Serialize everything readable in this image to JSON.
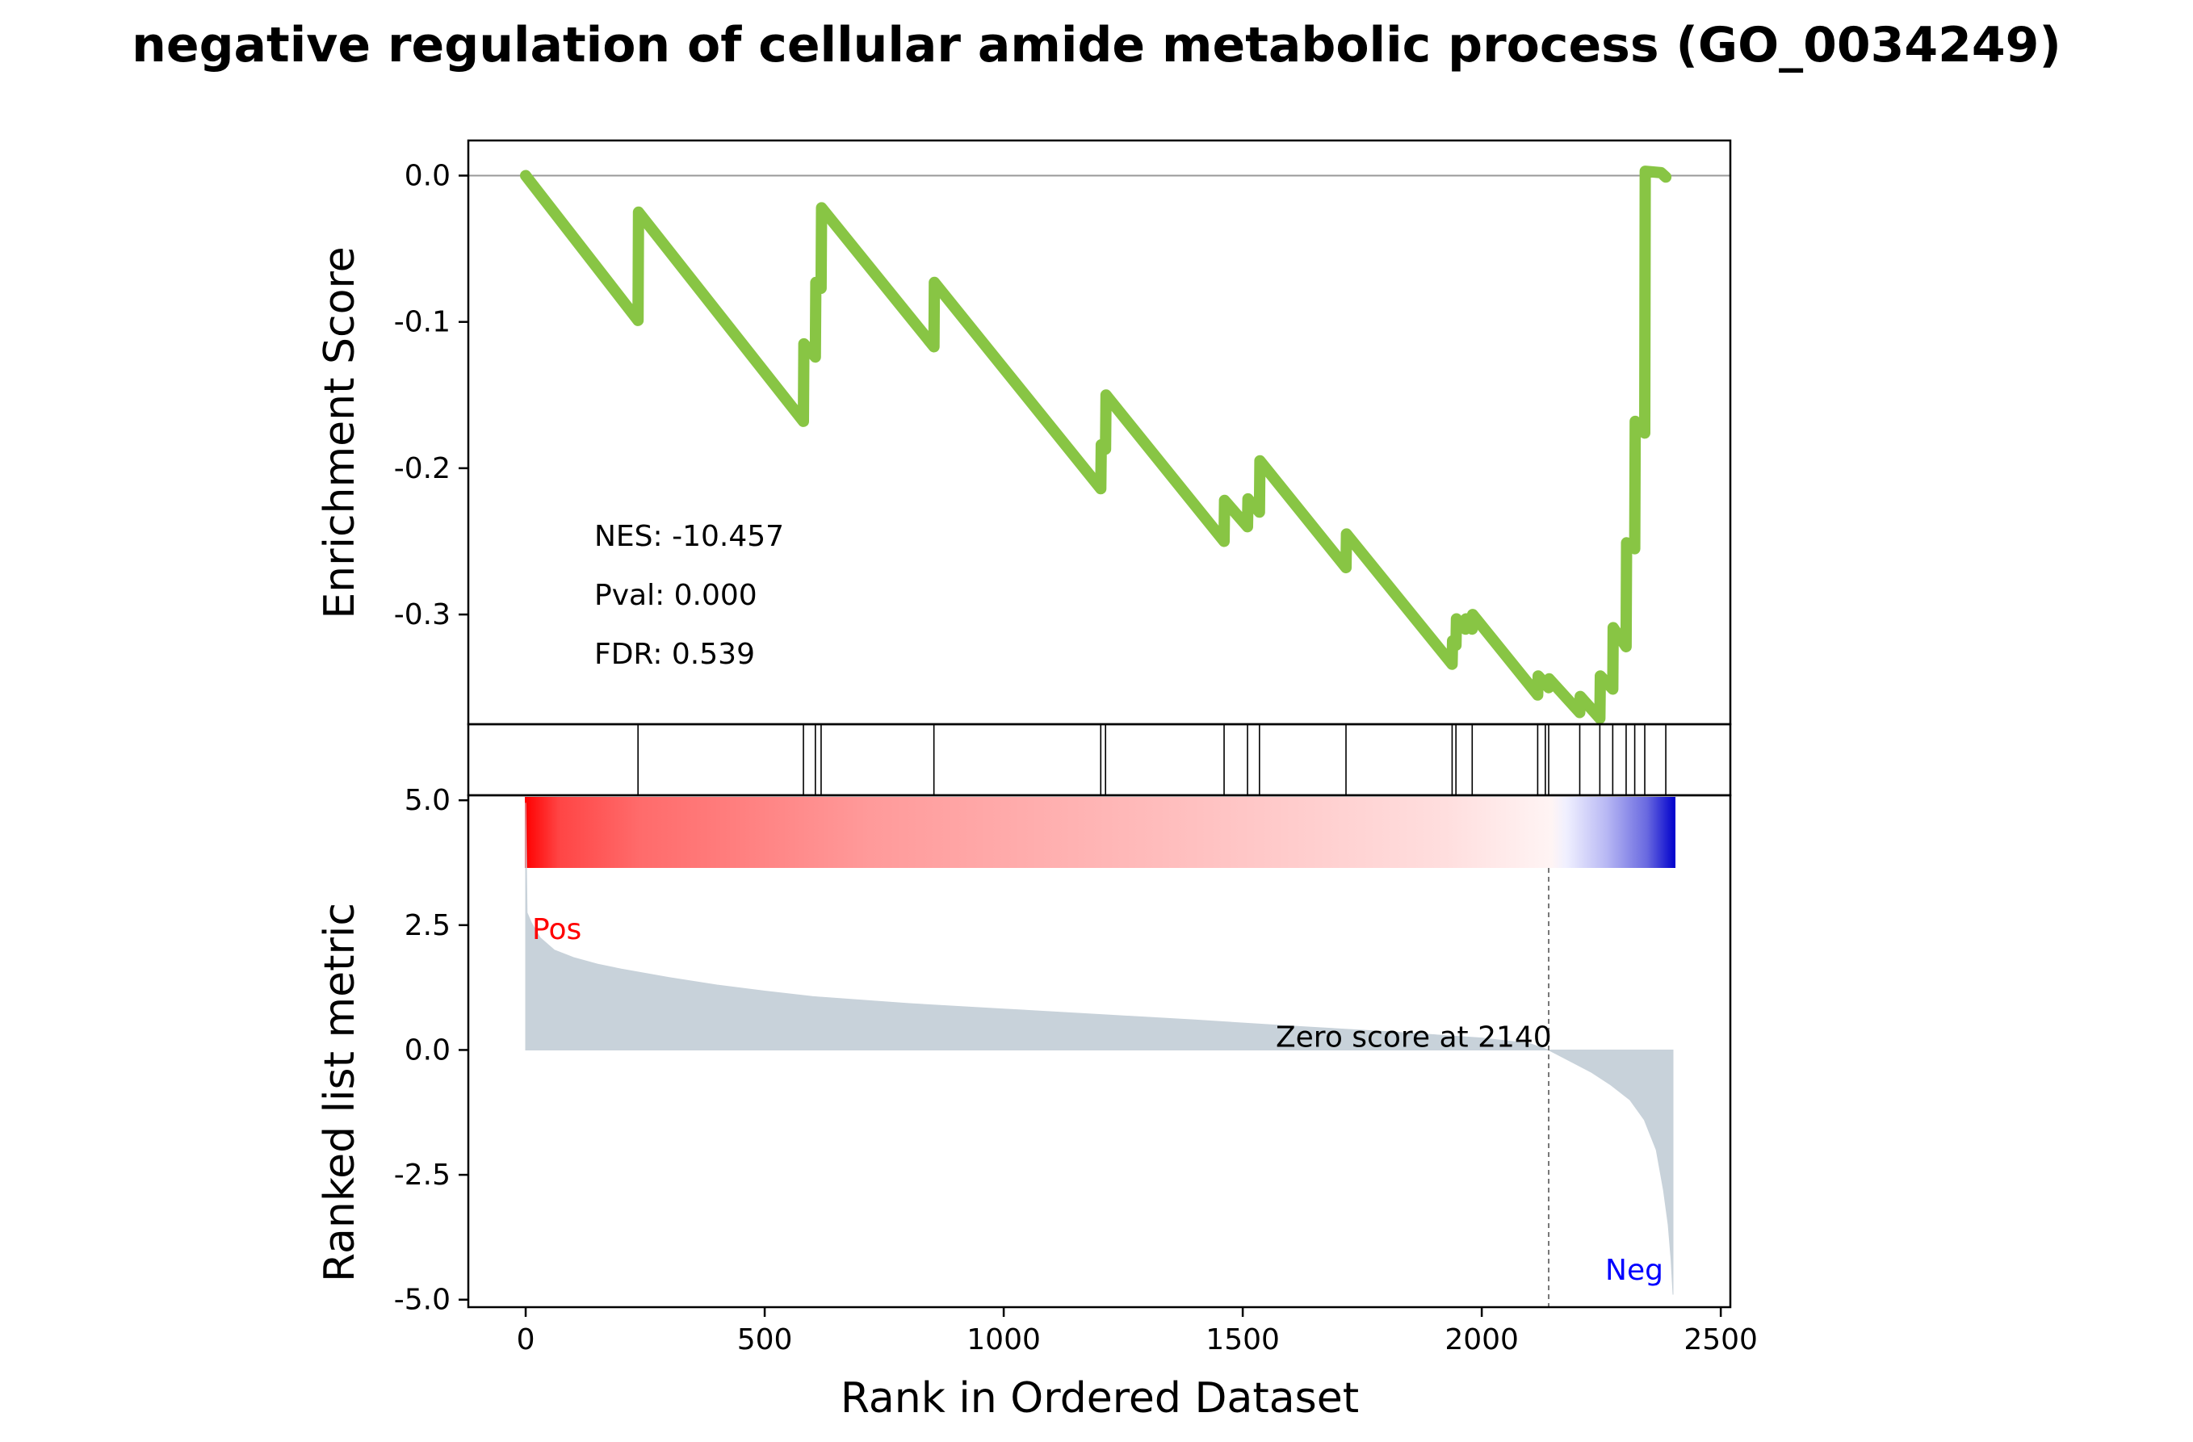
{
  "chart_data": {
    "type": "line",
    "title": "negative regulation of cellular amide metabolic process (GO_0034249)",
    "xlabel": "Rank in Ordered Dataset",
    "xlim": [
      -120,
      2520
    ],
    "xticks": [
      0,
      500,
      1000,
      1500,
      2000,
      2500
    ],
    "xtick_labels": [
      "0",
      "500",
      "1000",
      "1500",
      "2000",
      "2500"
    ],
    "n_genes": 2400,
    "enrichment": {
      "ylabel": "Enrichment Score",
      "ylim": [
        -0.375,
        0.024
      ],
      "yticks": [
        0.0,
        -0.1,
        -0.2,
        -0.3
      ],
      "ytick_labels": [
        "0.0",
        "-0.1",
        "-0.2",
        "-0.3"
      ],
      "color": "#88c544",
      "points": [
        [
          0,
          0.0
        ],
        [
          235,
          -0.099
        ],
        [
          236,
          -0.025
        ],
        [
          581,
          -0.168
        ],
        [
          582,
          -0.115
        ],
        [
          606,
          -0.124
        ],
        [
          607,
          -0.073
        ],
        [
          618,
          -0.077
        ],
        [
          619,
          -0.022
        ],
        [
          854,
          -0.117
        ],
        [
          855,
          -0.073
        ],
        [
          1203,
          -0.214
        ],
        [
          1204,
          -0.184
        ],
        [
          1213,
          -0.187
        ],
        [
          1214,
          -0.15
        ],
        [
          1461,
          -0.25
        ],
        [
          1462,
          -0.222
        ],
        [
          1510,
          -0.24
        ],
        [
          1511,
          -0.221
        ],
        [
          1535,
          -0.23
        ],
        [
          1536,
          -0.195
        ],
        [
          1716,
          -0.268
        ],
        [
          1717,
          -0.245
        ],
        [
          1938,
          -0.334
        ],
        [
          1939,
          -0.318
        ],
        [
          1946,
          -0.321
        ],
        [
          1947,
          -0.303
        ],
        [
          1966,
          -0.31
        ],
        [
          1967,
          -0.303
        ],
        [
          1980,
          -0.31
        ],
        [
          1981,
          -0.3
        ],
        [
          2117,
          -0.355
        ],
        [
          2118,
          -0.342
        ],
        [
          2140,
          -0.35
        ],
        [
          2141,
          -0.344
        ],
        [
          2205,
          -0.367
        ],
        [
          2206,
          -0.356
        ],
        [
          2247,
          -0.371
        ],
        [
          2248,
          -0.342
        ],
        [
          2274,
          -0.351
        ],
        [
          2275,
          -0.309
        ],
        [
          2302,
          -0.322
        ],
        [
          2303,
          -0.251
        ],
        [
          2320,
          -0.255
        ],
        [
          2321,
          -0.168
        ],
        [
          2341,
          -0.176
        ],
        [
          2342,
          0.003
        ],
        [
          2375,
          0.002
        ],
        [
          2385,
          -0.001
        ]
      ],
      "zero_line": 0.0
    },
    "hits": {
      "ranks": [
        235,
        581,
        606,
        618,
        854,
        1203,
        1213,
        1461,
        1510,
        1535,
        1716,
        1938,
        1946,
        1980,
        2117,
        2133,
        2140,
        2205,
        2247,
        2274,
        2302,
        2320,
        2341,
        2385
      ]
    },
    "heatmap": {
      "colors": [
        "#ff0000",
        "#ffffff",
        "#0000cc"
      ]
    },
    "ranked_metric": {
      "ylabel": "Ranked list metric",
      "ylim": [
        -5.15,
        5.1
      ],
      "yticks": [
        5.0,
        2.5,
        0.0,
        -2.5,
        -5.0
      ],
      "ytick_labels": [
        "5.0",
        "2.5",
        "0.0",
        "-2.5",
        "-5.0"
      ],
      "fill_color": "#c8d2da",
      "curve": [
        [
          0,
          4.95
        ],
        [
          3,
          2.75
        ],
        [
          12,
          2.55
        ],
        [
          30,
          2.25
        ],
        [
          60,
          2.0
        ],
        [
          100,
          1.85
        ],
        [
          150,
          1.72
        ],
        [
          200,
          1.62
        ],
        [
          300,
          1.45
        ],
        [
          400,
          1.3
        ],
        [
          500,
          1.18
        ],
        [
          600,
          1.07
        ],
        [
          800,
          0.93
        ],
        [
          1000,
          0.82
        ],
        [
          1200,
          0.71
        ],
        [
          1400,
          0.6
        ],
        [
          1600,
          0.48
        ],
        [
          1800,
          0.37
        ],
        [
          2000,
          0.24
        ],
        [
          2100,
          0.13
        ],
        [
          2140,
          0.0
        ],
        [
          2190,
          -0.25
        ],
        [
          2230,
          -0.45
        ],
        [
          2270,
          -0.7
        ],
        [
          2310,
          -1.0
        ],
        [
          2340,
          -1.4
        ],
        [
          2365,
          -2.0
        ],
        [
          2380,
          -2.8
        ],
        [
          2390,
          -3.5
        ],
        [
          2396,
          -4.2
        ],
        [
          2400,
          -4.9
        ]
      ],
      "zero_cross": 2140,
      "zero_label": "Zero score at 2140",
      "pos_label": "Pos",
      "neg_label": "Neg",
      "pos_color": "#ff0000",
      "neg_color": "#0000ff"
    },
    "stats": {
      "nes": "NES: -10.457",
      "pval": "Pval: 0.000",
      "fdr": "FDR: 0.539"
    }
  }
}
